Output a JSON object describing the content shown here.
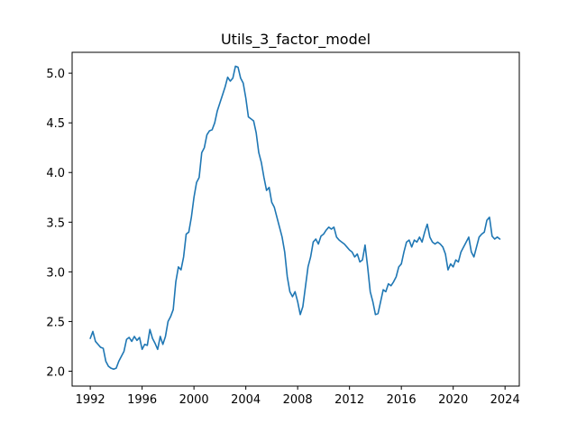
{
  "chart_data": {
    "type": "line",
    "title": "Utils_3_factor_model",
    "xlabel": "",
    "ylabel": "",
    "xlim": [
      1990.6,
      2025.1
    ],
    "ylim": [
      1.85,
      5.21
    ],
    "x_ticks": [
      1992,
      1996,
      2000,
      2004,
      2008,
      2012,
      2016,
      2020,
      2024
    ],
    "y_ticks": [
      2.0,
      2.5,
      3.0,
      3.5,
      4.0,
      4.5,
      5.0
    ],
    "y_tick_labels": [
      "2.0",
      "2.5",
      "3.0",
      "3.5",
      "4.0",
      "4.5",
      "5.0"
    ],
    "grid": false,
    "legend": "none",
    "series": [
      {
        "color": "#1f77b4",
        "points": [
          [
            1992.0,
            2.33
          ],
          [
            1992.2,
            2.4
          ],
          [
            1992.4,
            2.3
          ],
          [
            1992.6,
            2.27
          ],
          [
            1992.8,
            2.24
          ],
          [
            1993.0,
            2.23
          ],
          [
            1993.2,
            2.1
          ],
          [
            1993.4,
            2.05
          ],
          [
            1993.6,
            2.03
          ],
          [
            1993.8,
            2.02
          ],
          [
            1994.0,
            2.03
          ],
          [
            1994.2,
            2.1
          ],
          [
            1994.4,
            2.15
          ],
          [
            1994.6,
            2.2
          ],
          [
            1994.8,
            2.32
          ],
          [
            1995.0,
            2.34
          ],
          [
            1995.2,
            2.3
          ],
          [
            1995.4,
            2.35
          ],
          [
            1995.6,
            2.31
          ],
          [
            1995.8,
            2.34
          ],
          [
            1996.0,
            2.22
          ],
          [
            1996.2,
            2.27
          ],
          [
            1996.4,
            2.26
          ],
          [
            1996.6,
            2.42
          ],
          [
            1996.8,
            2.33
          ],
          [
            1997.0,
            2.28
          ],
          [
            1997.2,
            2.22
          ],
          [
            1997.4,
            2.35
          ],
          [
            1997.6,
            2.27
          ],
          [
            1997.8,
            2.35
          ],
          [
            1998.0,
            2.5
          ],
          [
            1998.2,
            2.55
          ],
          [
            1998.4,
            2.62
          ],
          [
            1998.6,
            2.9
          ],
          [
            1998.8,
            3.05
          ],
          [
            1999.0,
            3.02
          ],
          [
            1999.2,
            3.15
          ],
          [
            1999.4,
            3.38
          ],
          [
            1999.6,
            3.4
          ],
          [
            1999.8,
            3.55
          ],
          [
            2000.0,
            3.75
          ],
          [
            2000.2,
            3.9
          ],
          [
            2000.4,
            3.95
          ],
          [
            2000.6,
            4.2
          ],
          [
            2000.8,
            4.25
          ],
          [
            2001.0,
            4.38
          ],
          [
            2001.2,
            4.42
          ],
          [
            2001.4,
            4.43
          ],
          [
            2001.6,
            4.5
          ],
          [
            2001.8,
            4.62
          ],
          [
            2002.0,
            4.7
          ],
          [
            2002.2,
            4.78
          ],
          [
            2002.4,
            4.86
          ],
          [
            2002.6,
            4.96
          ],
          [
            2002.8,
            4.92
          ],
          [
            2003.0,
            4.95
          ],
          [
            2003.2,
            5.07
          ],
          [
            2003.4,
            5.06
          ],
          [
            2003.6,
            4.95
          ],
          [
            2003.8,
            4.9
          ],
          [
            2004.0,
            4.75
          ],
          [
            2004.2,
            4.56
          ],
          [
            2004.4,
            4.54
          ],
          [
            2004.6,
            4.52
          ],
          [
            2004.8,
            4.4
          ],
          [
            2005.0,
            4.2
          ],
          [
            2005.2,
            4.1
          ],
          [
            2005.4,
            3.95
          ],
          [
            2005.6,
            3.82
          ],
          [
            2005.8,
            3.85
          ],
          [
            2006.0,
            3.7
          ],
          [
            2006.2,
            3.65
          ],
          [
            2006.4,
            3.55
          ],
          [
            2006.6,
            3.45
          ],
          [
            2006.8,
            3.35
          ],
          [
            2007.0,
            3.2
          ],
          [
            2007.2,
            2.95
          ],
          [
            2007.4,
            2.8
          ],
          [
            2007.6,
            2.75
          ],
          [
            2007.8,
            2.8
          ],
          [
            2008.0,
            2.7
          ],
          [
            2008.2,
            2.57
          ],
          [
            2008.4,
            2.65
          ],
          [
            2008.6,
            2.85
          ],
          [
            2008.8,
            3.05
          ],
          [
            2009.0,
            3.15
          ],
          [
            2009.2,
            3.3
          ],
          [
            2009.4,
            3.33
          ],
          [
            2009.6,
            3.28
          ],
          [
            2009.8,
            3.36
          ],
          [
            2010.0,
            3.38
          ],
          [
            2010.2,
            3.42
          ],
          [
            2010.4,
            3.45
          ],
          [
            2010.6,
            3.43
          ],
          [
            2010.8,
            3.45
          ],
          [
            2011.0,
            3.35
          ],
          [
            2011.2,
            3.32
          ],
          [
            2011.4,
            3.3
          ],
          [
            2011.6,
            3.28
          ],
          [
            2011.8,
            3.25
          ],
          [
            2012.0,
            3.22
          ],
          [
            2012.2,
            3.2
          ],
          [
            2012.4,
            3.15
          ],
          [
            2012.6,
            3.18
          ],
          [
            2012.8,
            3.1
          ],
          [
            2013.0,
            3.12
          ],
          [
            2013.2,
            3.27
          ],
          [
            2013.4,
            3.05
          ],
          [
            2013.6,
            2.8
          ],
          [
            2013.8,
            2.7
          ],
          [
            2014.0,
            2.57
          ],
          [
            2014.2,
            2.58
          ],
          [
            2014.4,
            2.7
          ],
          [
            2014.6,
            2.82
          ],
          [
            2014.8,
            2.8
          ],
          [
            2015.0,
            2.88
          ],
          [
            2015.2,
            2.86
          ],
          [
            2015.4,
            2.9
          ],
          [
            2015.6,
            2.95
          ],
          [
            2015.8,
            3.05
          ],
          [
            2016.0,
            3.08
          ],
          [
            2016.2,
            3.2
          ],
          [
            2016.4,
            3.3
          ],
          [
            2016.6,
            3.32
          ],
          [
            2016.8,
            3.25
          ],
          [
            2017.0,
            3.32
          ],
          [
            2017.2,
            3.3
          ],
          [
            2017.4,
            3.35
          ],
          [
            2017.6,
            3.3
          ],
          [
            2017.8,
            3.4
          ],
          [
            2018.0,
            3.48
          ],
          [
            2018.2,
            3.35
          ],
          [
            2018.4,
            3.3
          ],
          [
            2018.6,
            3.28
          ],
          [
            2018.8,
            3.3
          ],
          [
            2019.0,
            3.28
          ],
          [
            2019.2,
            3.25
          ],
          [
            2019.4,
            3.18
          ],
          [
            2019.6,
            3.02
          ],
          [
            2019.8,
            3.08
          ],
          [
            2020.0,
            3.05
          ],
          [
            2020.2,
            3.12
          ],
          [
            2020.4,
            3.1
          ],
          [
            2020.6,
            3.2
          ],
          [
            2020.8,
            3.25
          ],
          [
            2021.0,
            3.3
          ],
          [
            2021.2,
            3.35
          ],
          [
            2021.4,
            3.2
          ],
          [
            2021.6,
            3.15
          ],
          [
            2021.8,
            3.25
          ],
          [
            2022.0,
            3.35
          ],
          [
            2022.2,
            3.38
          ],
          [
            2022.4,
            3.4
          ],
          [
            2022.6,
            3.52
          ],
          [
            2022.8,
            3.55
          ],
          [
            2023.0,
            3.36
          ],
          [
            2023.2,
            3.33
          ],
          [
            2023.4,
            3.35
          ],
          [
            2023.6,
            3.33
          ]
        ]
      }
    ]
  }
}
